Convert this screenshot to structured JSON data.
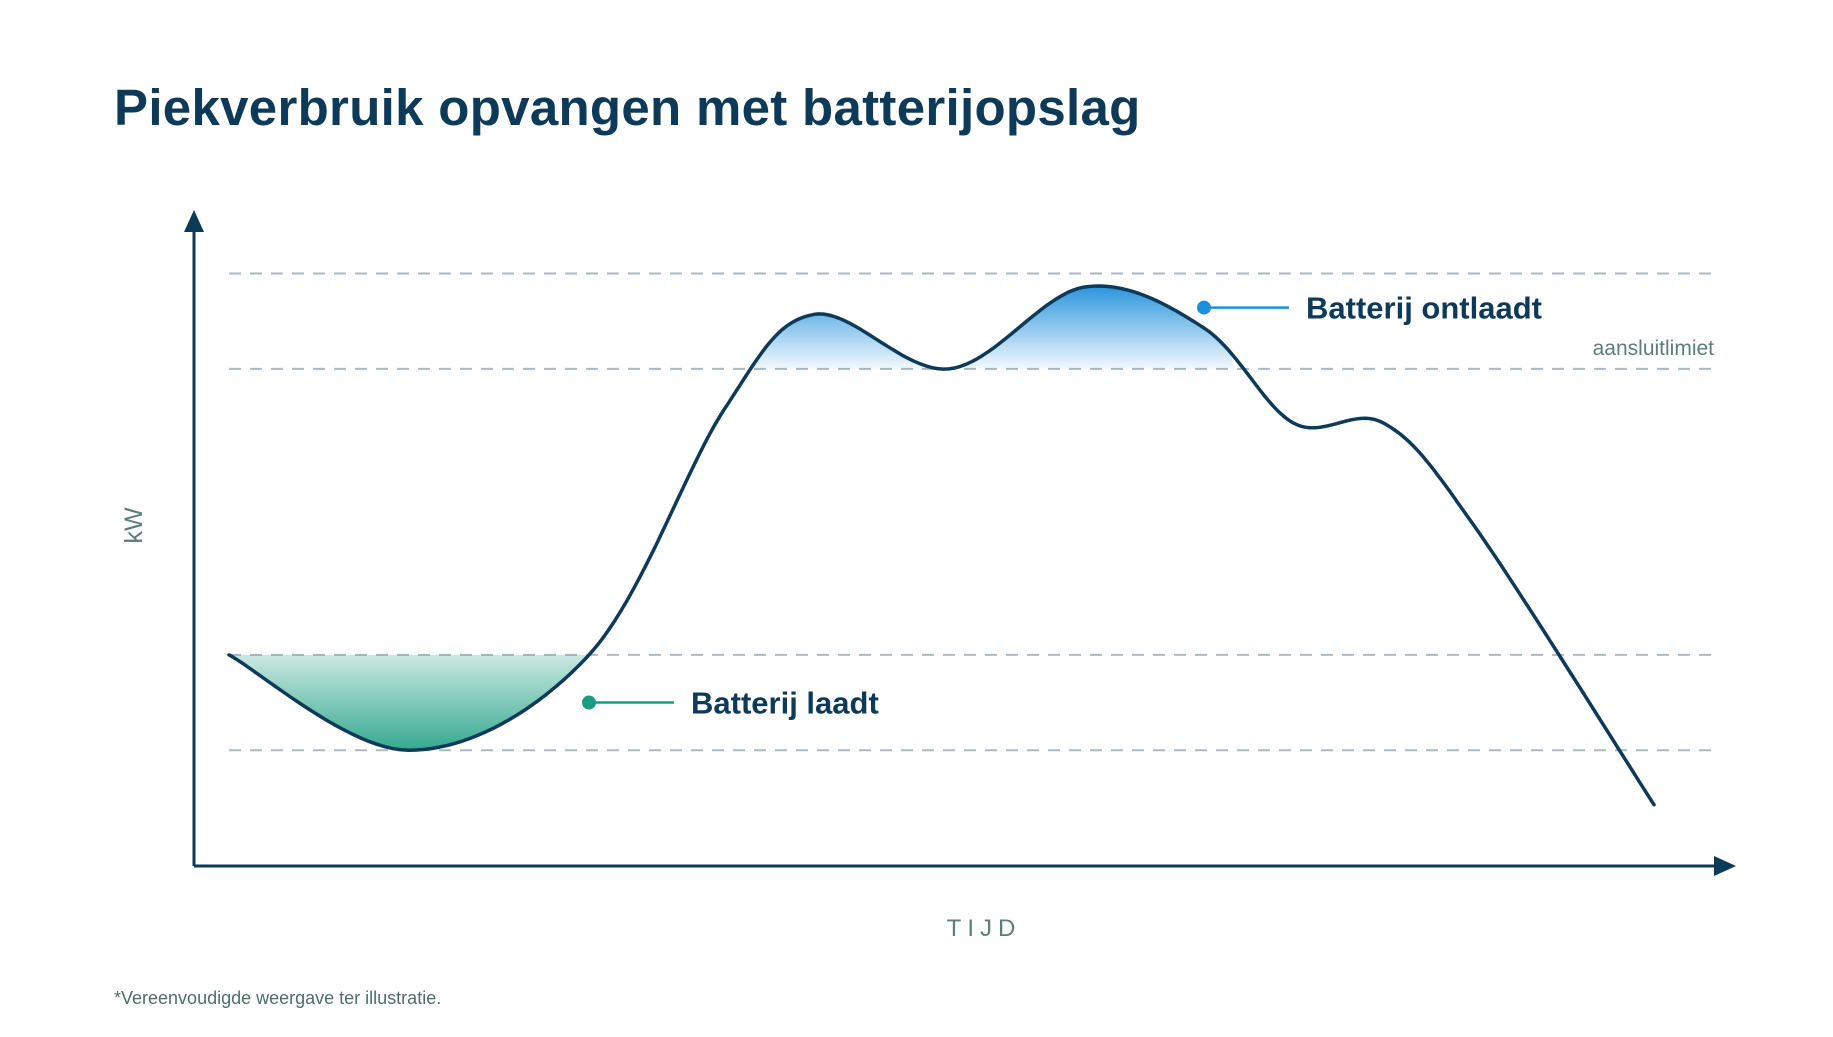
{
  "title": "Piekverbruik opvangen met batterijopslag",
  "footnote": "*Vereenvoudigde weergave ter illustratie.",
  "chart_data": {
    "type": "area",
    "title": "Piekverbruik opvangen met batterijopslag",
    "xlabel": "TIJD",
    "ylabel": "kW",
    "xlim": [
      0,
      100
    ],
    "ylim": [
      0,
      100
    ],
    "grid": "dashed horizontal reference lines",
    "reference_lines": [
      {
        "y": 87,
        "label": ""
      },
      {
        "y": 73,
        "label": "aansluitlimiet"
      },
      {
        "y": 31,
        "label": ""
      },
      {
        "y": 17,
        "label": ""
      }
    ],
    "series": [
      {
        "values": [
          [
            1,
            31
          ],
          [
            13,
            17
          ],
          [
            25,
            31
          ],
          [
            34,
            67
          ],
          [
            40,
            81
          ],
          [
            49,
            73
          ],
          [
            58,
            85
          ],
          [
            66,
            79
          ],
          [
            72,
            65
          ],
          [
            78,
            65
          ],
          [
            84,
            50
          ],
          [
            96,
            9
          ]
        ]
      }
    ],
    "fill_regions": [
      {
        "between": [
          "series",
          31
        ],
        "range": [
          1,
          25
        ],
        "color": "#2aa58a"
      },
      {
        "between": [
          "series",
          73
        ],
        "range": [
          35.5,
          68
        ],
        "color": "#1f8fdb"
      }
    ],
    "annotations": [
      {
        "text": "Batterij laadt",
        "color": "#1a9c80",
        "x": 25,
        "y": 24
      },
      {
        "text": "Batterij ontlaadt",
        "color": "#1f8fdb",
        "x": 66,
        "y": 82
      }
    ],
    "colors": {
      "line": "#0e3a59",
      "grid": "#aab9c2",
      "axis": "#0e3a59",
      "label": "#5c7e78"
    }
  }
}
